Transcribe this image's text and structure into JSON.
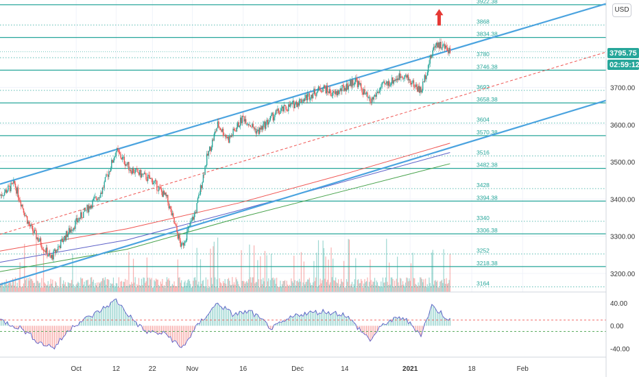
{
  "currency": "USD",
  "price_badge": {
    "value": "3795.75",
    "countdown": "02:59:12",
    "color": "#26a69a"
  },
  "colors": {
    "channel": "#4aa3df",
    "midline": "#ef5350",
    "level": "#26a69a",
    "up": "#26a69a",
    "down": "#ef5350",
    "sma_fast": "#ef5350",
    "sma_mid": "#5b5fc7",
    "sma_slow": "#43a047",
    "arrow": "#e53935",
    "osc_line": "#5b5fc7"
  },
  "chart_data": [
    {
      "type": "candlestick",
      "x_axis": {
        "type": "date",
        "range": [
          "2020-09-10",
          "2021-02-24"
        ],
        "ticks": [
          {
            "date": "2020-10-01",
            "label": "Oct"
          },
          {
            "date": "2020-10-12",
            "label": "12"
          },
          {
            "date": "2020-10-22",
            "label": "22"
          },
          {
            "date": "2020-11-02",
            "label": "Nov"
          },
          {
            "date": "2020-11-16",
            "label": "16"
          },
          {
            "date": "2020-12-01",
            "label": "Dec"
          },
          {
            "date": "2020-12-14",
            "label": "14"
          },
          {
            "date": "2021-01-01",
            "label": "2021",
            "bold": true
          },
          {
            "date": "2021-01-18",
            "label": "18"
          },
          {
            "date": "2021-02-01",
            "label": "Feb"
          }
        ]
      },
      "y_axis": {
        "range": [
          3150,
          3935
        ],
        "ticks": [
          3200,
          3300,
          3400,
          3500,
          3600,
          3700
        ],
        "tick_labels": [
          "3200.00",
          "3300.00",
          "3400.00",
          "3500.00",
          "3600.00",
          "3700.00"
        ]
      },
      "price_path": [
        {
          "date": "2020-09-10",
          "value": 3410
        },
        {
          "date": "2020-09-14",
          "value": 3440
        },
        {
          "date": "2020-09-18",
          "value": 3330
        },
        {
          "date": "2020-09-24",
          "value": 3240
        },
        {
          "date": "2020-09-28",
          "value": 3300
        },
        {
          "date": "2020-10-02",
          "value": 3350
        },
        {
          "date": "2020-10-08",
          "value": 3420
        },
        {
          "date": "2020-10-12",
          "value": 3530
        },
        {
          "date": "2020-10-16",
          "value": 3480
        },
        {
          "date": "2020-10-22",
          "value": 3450
        },
        {
          "date": "2020-10-26",
          "value": 3400
        },
        {
          "date": "2020-10-30",
          "value": 3270
        },
        {
          "date": "2020-11-03",
          "value": 3370
        },
        {
          "date": "2020-11-06",
          "value": 3510
        },
        {
          "date": "2020-11-09",
          "value": 3600
        },
        {
          "date": "2020-11-12",
          "value": 3560
        },
        {
          "date": "2020-11-16",
          "value": 3620
        },
        {
          "date": "2020-11-20",
          "value": 3580
        },
        {
          "date": "2020-11-25",
          "value": 3630
        },
        {
          "date": "2020-12-01",
          "value": 3660
        },
        {
          "date": "2020-12-08",
          "value": 3700
        },
        {
          "date": "2020-12-11",
          "value": 3680
        },
        {
          "date": "2020-12-17",
          "value": 3720
        },
        {
          "date": "2020-12-21",
          "value": 3660
        },
        {
          "date": "2020-12-24",
          "value": 3700
        },
        {
          "date": "2020-12-30",
          "value": 3735
        },
        {
          "date": "2021-01-04",
          "value": 3690
        },
        {
          "date": "2021-01-06",
          "value": 3760
        },
        {
          "date": "2021-01-08",
          "value": 3820
        },
        {
          "date": "2021-01-12",
          "value": 3800
        }
      ],
      "channel": {
        "upper": [
          {
            "date": "2020-09-10",
            "value": 3440
          },
          {
            "date": "2021-02-24",
            "value": 3925
          }
        ],
        "lower": [
          {
            "date": "2020-09-10",
            "value": 3170
          },
          {
            "date": "2021-02-24",
            "value": 3665
          }
        ],
        "mid": [
          {
            "date": "2020-09-10",
            "value": 3305
          },
          {
            "date": "2021-02-24",
            "value": 3795
          }
        ]
      },
      "levels": [
        {
          "value": 3922.38,
          "label": "3922.38",
          "style": "solid"
        },
        {
          "value": 3868,
          "label": "3868",
          "style": "dotted"
        },
        {
          "value": 3834.38,
          "label": "3834.38",
          "style": "solid"
        },
        {
          "value": 3780,
          "label": "3780",
          "style": "dotted"
        },
        {
          "value": 3746.38,
          "label": "3746.38",
          "style": "solid"
        },
        {
          "value": 3692,
          "label": "3692",
          "style": "dotted"
        },
        {
          "value": 3658.38,
          "label": "3658.38",
          "style": "solid"
        },
        {
          "value": 3604,
          "label": "3604",
          "style": "dotted"
        },
        {
          "value": 3570.38,
          "label": "3570.38",
          "style": "solid"
        },
        {
          "value": 3516,
          "label": "3516",
          "style": "dotted"
        },
        {
          "value": 3482.38,
          "label": "3482.38",
          "style": "solid"
        },
        {
          "value": 3428,
          "label": "3428",
          "style": "dotted"
        },
        {
          "value": 3394.38,
          "label": "3394.38",
          "style": "solid"
        },
        {
          "value": 3340,
          "label": "3340",
          "style": "dotted"
        },
        {
          "value": 3306.38,
          "label": "3306.38",
          "style": "solid"
        },
        {
          "value": 3252,
          "label": "3252",
          "style": "dotted"
        },
        {
          "value": 3218.38,
          "label": "3218.38",
          "style": "solid"
        },
        {
          "value": 3164,
          "label": "3164",
          "style": "dotted"
        }
      ],
      "moving_averages": [
        {
          "color": "#ef5350",
          "points": [
            {
              "date": "2020-09-10",
              "value": 3260
            },
            {
              "date": "2020-10-15",
              "value": 3320
            },
            {
              "date": "2020-11-15",
              "value": 3390
            },
            {
              "date": "2020-12-15",
              "value": 3470
            },
            {
              "date": "2021-01-12",
              "value": 3550
            }
          ]
        },
        {
          "color": "#5b5fc7",
          "points": [
            {
              "date": "2020-09-10",
              "value": 3230
            },
            {
              "date": "2020-10-15",
              "value": 3290
            },
            {
              "date": "2020-11-15",
              "value": 3370
            },
            {
              "date": "2020-12-15",
              "value": 3450
            },
            {
              "date": "2021-01-12",
              "value": 3525
            }
          ]
        },
        {
          "color": "#43a047",
          "points": [
            {
              "date": "2020-09-10",
              "value": 3205
            },
            {
              "date": "2020-10-15",
              "value": 3265
            },
            {
              "date": "2020-11-15",
              "value": 3350
            },
            {
              "date": "2020-12-15",
              "value": 3425
            },
            {
              "date": "2021-01-12",
              "value": 3495
            }
          ]
        }
      ],
      "last_price": 3795.75,
      "arrow": {
        "date": "2021-01-09",
        "value": 3870,
        "direction": "up"
      }
    },
    {
      "type": "area",
      "name": "oscillator",
      "y_axis": {
        "range": [
          -55,
          58
        ],
        "ticks": [
          40,
          0,
          -40
        ],
        "tick_labels": [
          "40.00",
          "0.00",
          "-40.00"
        ]
      },
      "thresholds": [
        {
          "value": 10,
          "color": "#ef5350"
        },
        {
          "value": -10,
          "color": "#43a047"
        }
      ],
      "path": [
        {
          "date": "2020-09-10",
          "value": 10
        },
        {
          "date": "2020-09-16",
          "value": -5
        },
        {
          "date": "2020-09-21",
          "value": -30
        },
        {
          "date": "2020-09-25",
          "value": -38
        },
        {
          "date": "2020-09-30",
          "value": 0
        },
        {
          "date": "2020-10-06",
          "value": 20
        },
        {
          "date": "2020-10-12",
          "value": 45
        },
        {
          "date": "2020-10-16",
          "value": 15
        },
        {
          "date": "2020-10-20",
          "value": -10
        },
        {
          "date": "2020-10-26",
          "value": -15
        },
        {
          "date": "2020-10-30",
          "value": -40
        },
        {
          "date": "2020-11-04",
          "value": 5
        },
        {
          "date": "2020-11-09",
          "value": 40
        },
        {
          "date": "2020-11-13",
          "value": 20
        },
        {
          "date": "2020-11-18",
          "value": 25
        },
        {
          "date": "2020-11-24",
          "value": -5
        },
        {
          "date": "2020-12-01",
          "value": 20
        },
        {
          "date": "2020-12-08",
          "value": 25
        },
        {
          "date": "2020-12-14",
          "value": 20
        },
        {
          "date": "2020-12-21",
          "value": -25
        },
        {
          "date": "2020-12-25",
          "value": 5
        },
        {
          "date": "2020-12-30",
          "value": 15
        },
        {
          "date": "2021-01-04",
          "value": -15
        },
        {
          "date": "2021-01-07",
          "value": 35
        },
        {
          "date": "2021-01-12",
          "value": 10
        }
      ]
    }
  ]
}
